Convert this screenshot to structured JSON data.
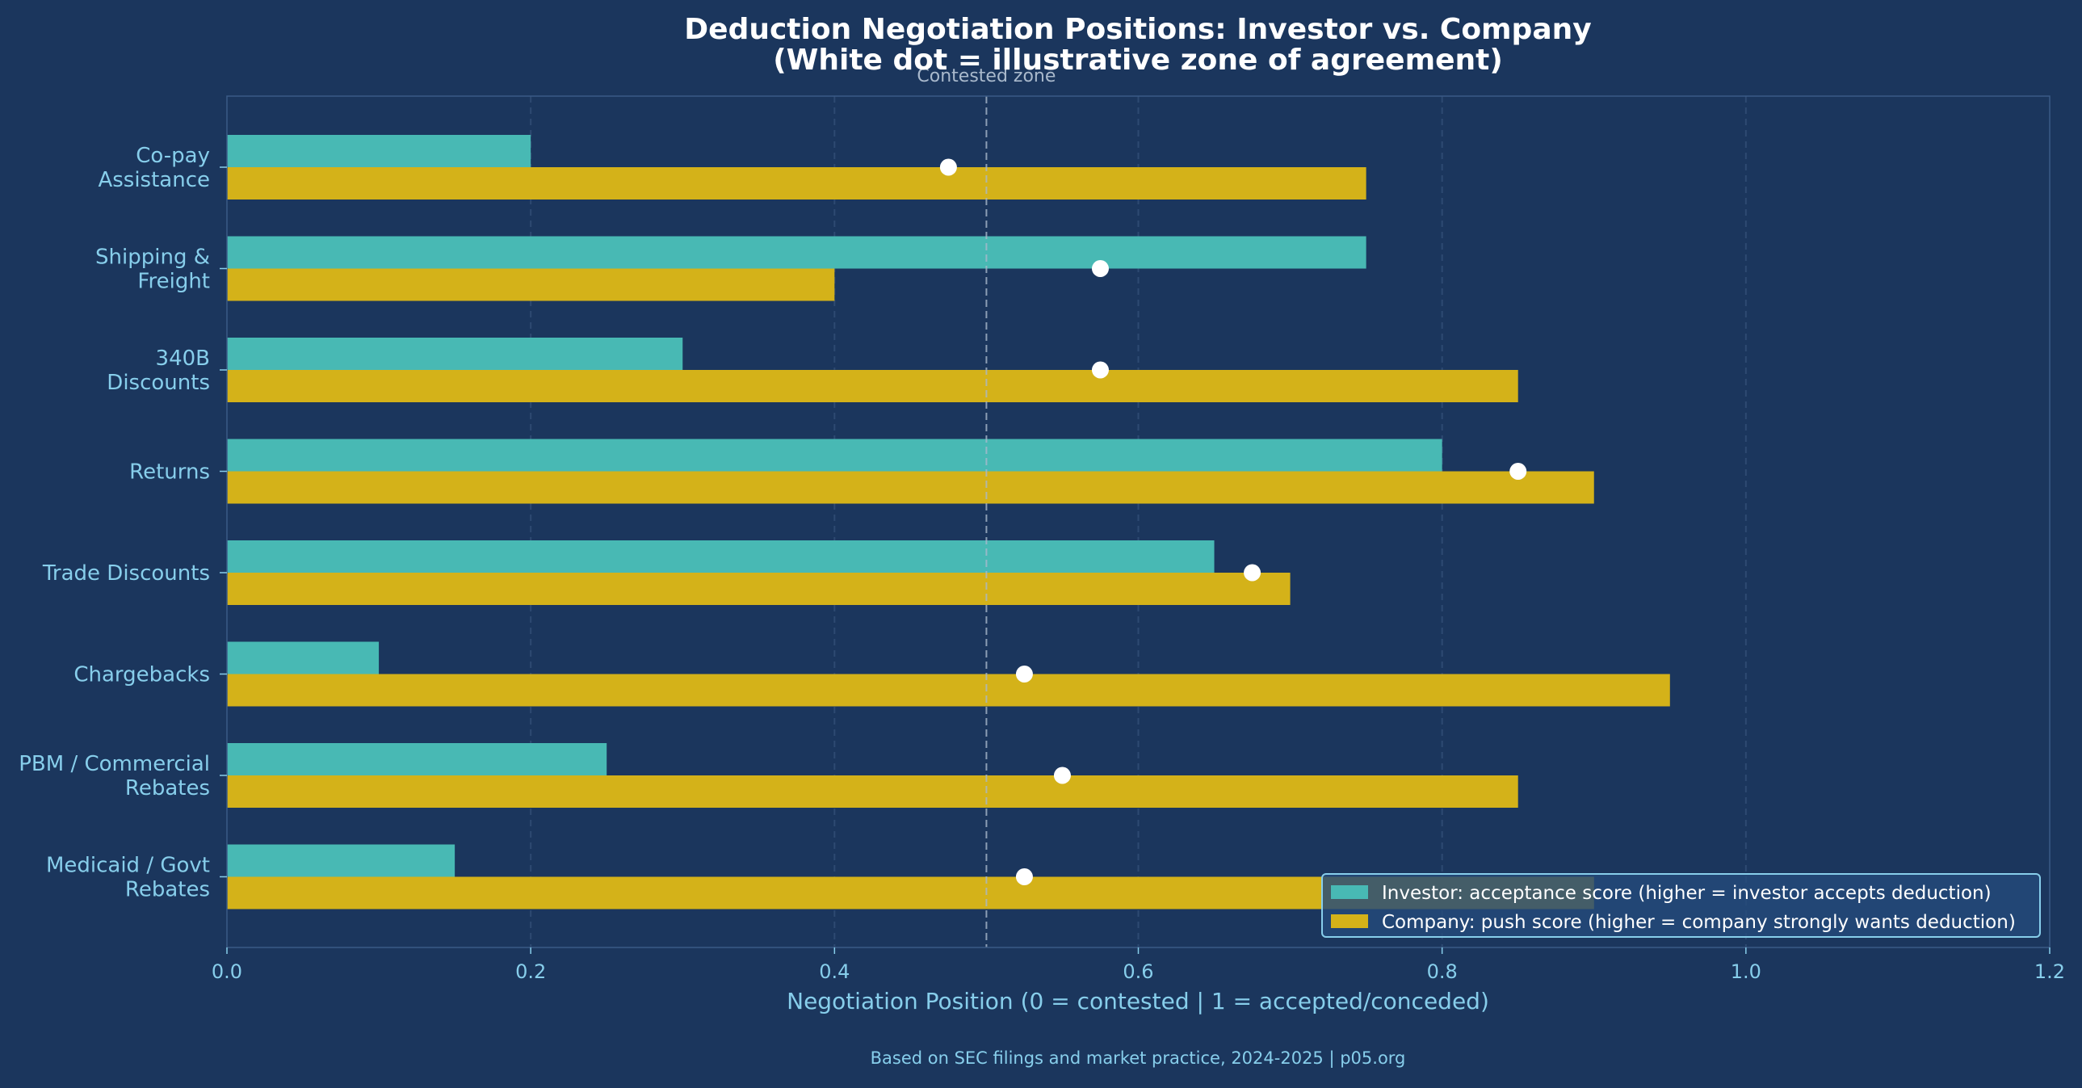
{
  "colors": {
    "background": "#1b365d",
    "investor": "#48b9b4",
    "company": "#d4b219",
    "agreement_dot": "#ffffff",
    "text": "#87ceeb",
    "title": "#ffffff",
    "frame": "#3a5a86",
    "grid": "#2e4a72",
    "legend_bg": "#254a7a",
    "legend_border": "#87ceeb"
  },
  "chart_data": {
    "type": "bar",
    "orientation": "horizontal",
    "title": "Deduction Negotiation Positions: Investor vs. Company",
    "subtitle": "(White dot = illustrative zone of agreement)",
    "xlabel": "Negotiation Position (0 = contested | 1 = accepted/conceded)",
    "ylabel": "",
    "xlim": [
      0,
      1.2
    ],
    "xticks": [
      0.0,
      0.2,
      0.4,
      0.6,
      0.8,
      1.0,
      1.2
    ],
    "xtick_labels": [
      "0.0",
      "0.2",
      "0.4",
      "0.6",
      "0.8",
      "1.0",
      "1.2"
    ],
    "grid": "vertical dashed",
    "categories": [
      "Co-pay\nAssistance",
      "Shipping &\nFreight",
      "340B\nDiscounts",
      "Returns",
      "Trade Discounts",
      "Chargebacks",
      "PBM / Commercial\nRebates",
      "Medicaid / Govt\nRebates"
    ],
    "series": [
      {
        "name": "Investor: acceptance score (higher = investor accepts deduction)",
        "values": [
          0.2,
          0.75,
          0.3,
          0.8,
          0.65,
          0.1,
          0.25,
          0.15
        ]
      },
      {
        "name": "Company: push score (higher = company strongly wants deduction)",
        "values": [
          0.75,
          0.4,
          0.85,
          0.9,
          0.7,
          0.95,
          0.85,
          0.9
        ]
      }
    ],
    "agreement_points": [
      0.475,
      0.575,
      0.575,
      0.85,
      0.675,
      0.525,
      0.55,
      0.525
    ],
    "reference_line": {
      "x": 0.5,
      "label": "Contested zone"
    },
    "legend_position": "lower-right"
  },
  "footer": "Based on SEC filings and market practice, 2024-2025  |  p05.org"
}
